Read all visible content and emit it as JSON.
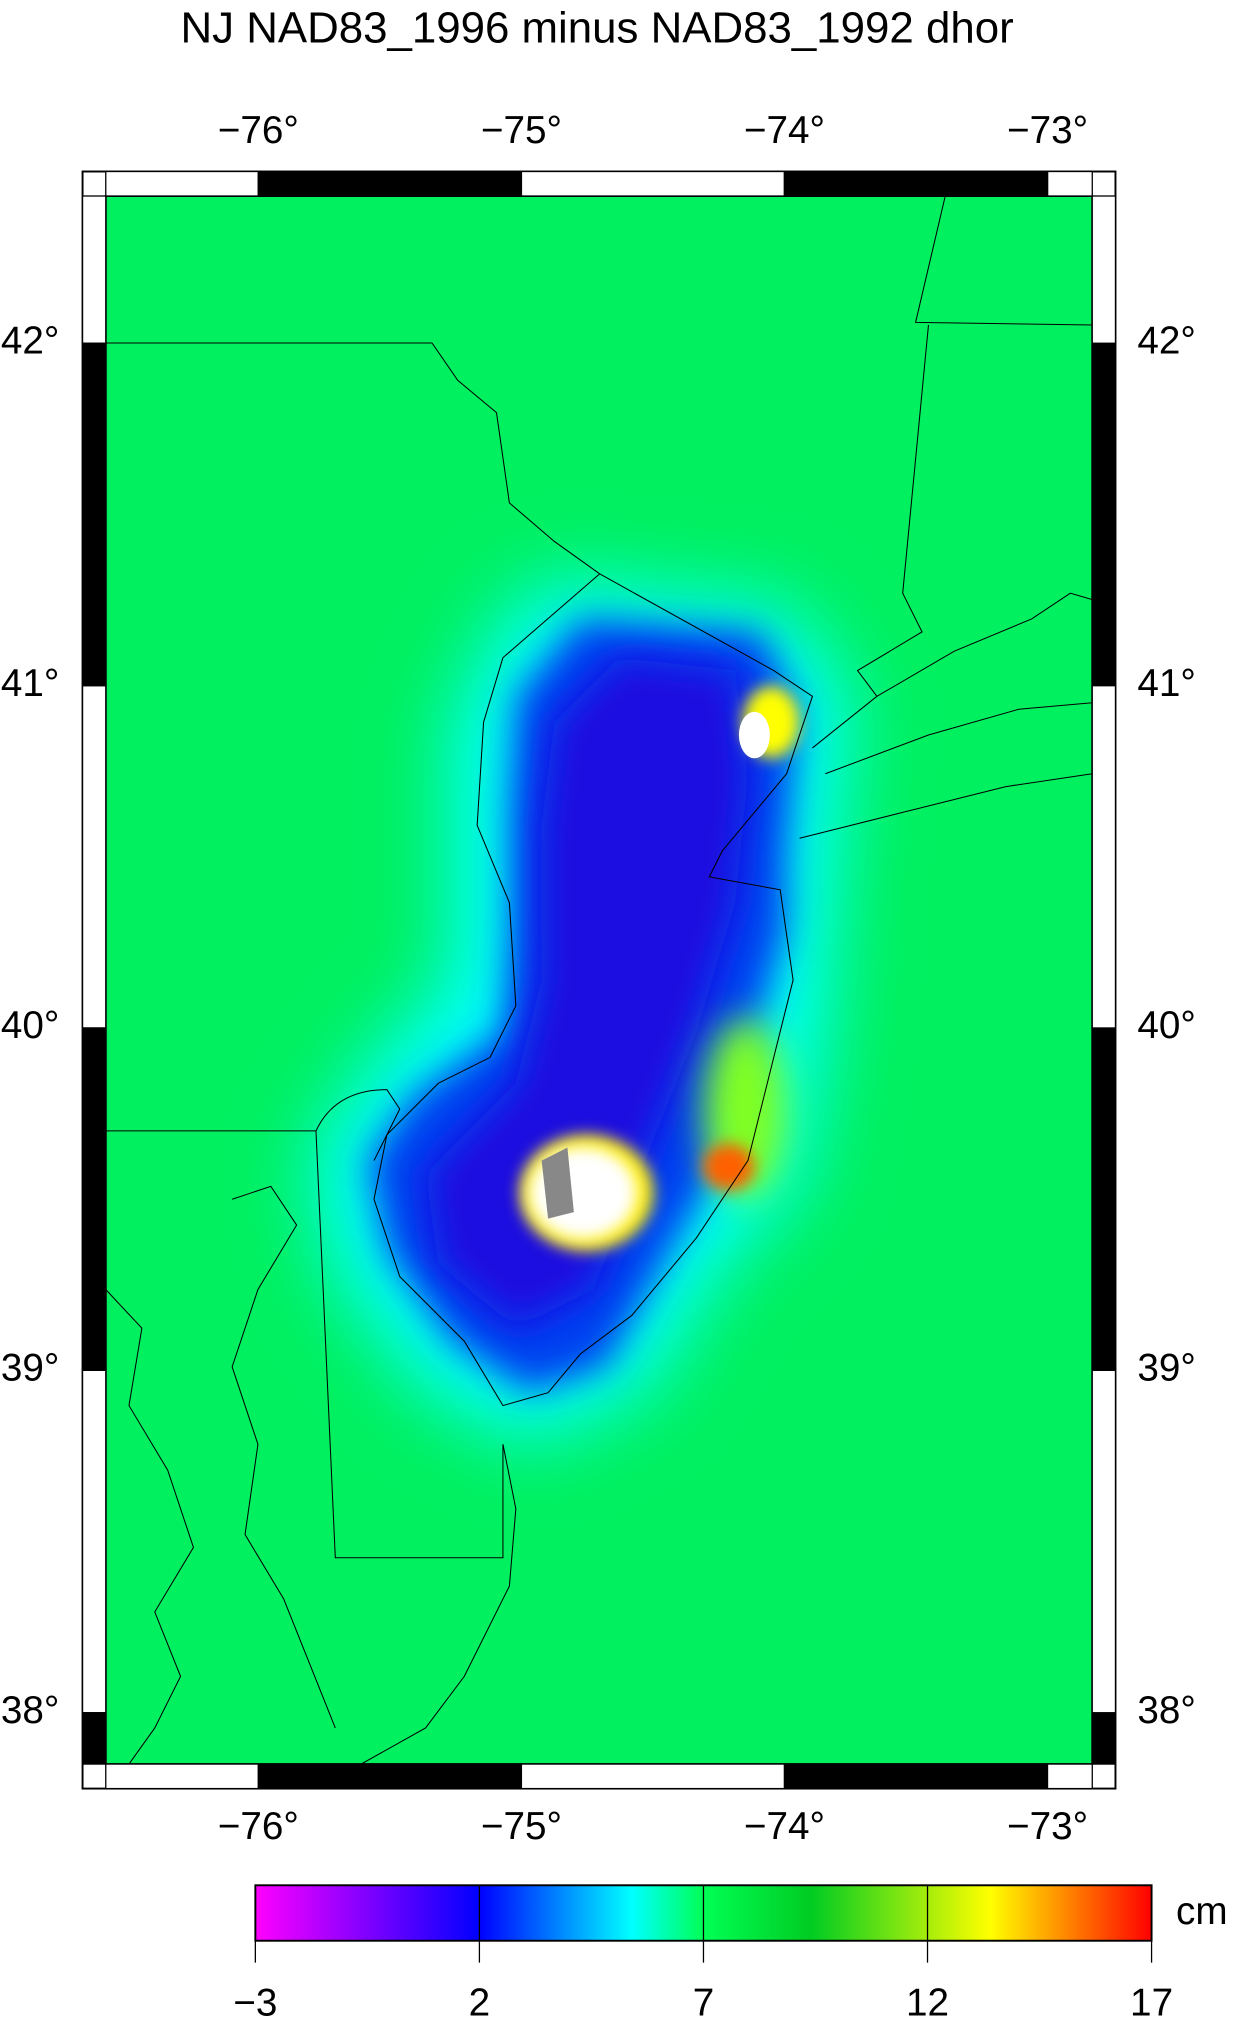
{
  "chart_data": {
    "type": "map",
    "title": "NJ NAD83_1996 minus NAD83_1992 dhor",
    "xlim": [
      -76.58,
      -72.83
    ],
    "ylim": [
      37.85,
      42.43
    ],
    "xticks": [
      {
        "value": -76,
        "label": "−76°"
      },
      {
        "value": -75,
        "label": "−75°"
      },
      {
        "value": -74,
        "label": "−74°"
      },
      {
        "value": -73,
        "label": "−73°"
      }
    ],
    "yticks": [
      {
        "value": 38,
        "label": "38°"
      },
      {
        "value": 39,
        "label": "39°"
      },
      {
        "value": 40,
        "label": "40°"
      },
      {
        "value": 41,
        "label": "41°"
      },
      {
        "value": 42,
        "label": "42°"
      }
    ],
    "colorbar": {
      "label": "cm",
      "lim": [
        -3,
        17
      ],
      "ticks": [
        {
          "value": -3,
          "label": "−3"
        },
        2,
        7,
        12,
        17
      ]
    }
  }
}
